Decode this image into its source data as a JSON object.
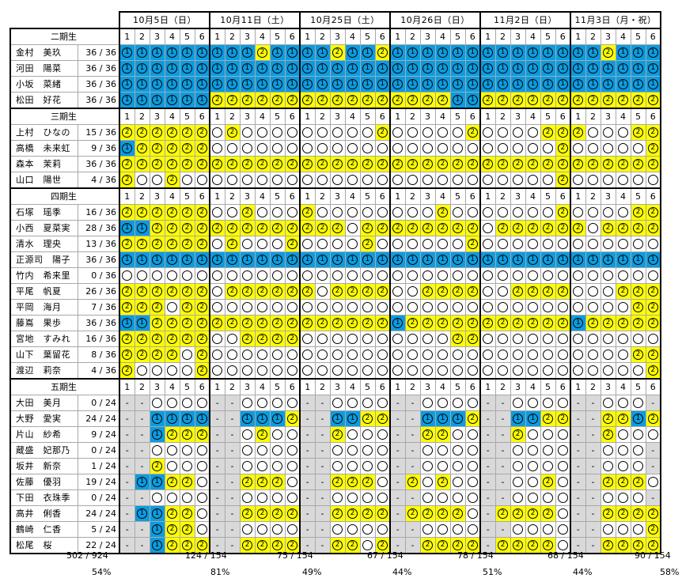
{
  "dates": [
    "10月5日（日）",
    "10月11日（土）",
    "10月25日（土）",
    "10月26日（日）",
    "11月2日（日）",
    "11月3日（月・祝）"
  ],
  "period_numbers": [
    "1",
    "2",
    "3",
    "4",
    "5",
    "6"
  ],
  "groups": [
    {
      "label": "二期生",
      "students": [
        {
          "name": "金村　美玖",
          "score": "36 / 36",
          "cells": "111111 111211 112112 111111 111111 112111"
        },
        {
          "name": "河田　陽菜",
          "score": "36 / 36",
          "cells": "111111 111111 111111 111111 111111 111111"
        },
        {
          "name": "小坂　菜緒",
          "score": "36 / 36",
          "cells": "111111 111111 111111 111111 111111 111111"
        },
        {
          "name": "松田　好花",
          "score": "36 / 36",
          "cells": "111111 222222 222222 222211 222222 222222"
        }
      ]
    },
    {
      "label": "三期生",
      "students": [
        {
          "name": "上村　ひなの",
          "score": "15 / 36",
          "cells": "222222 020000 000002 000002 000022 200022"
        },
        {
          "name": "高橋　未来虹",
          "score": "9 / 36",
          "cells": "122222 000000 000000 000000 000002 000002"
        },
        {
          "name": "森本　茉莉",
          "score": "36 / 36",
          "cells": "222222 222222 222222 222222 222222 222222"
        },
        {
          "name": "山口　陽世",
          "score": "4 / 36",
          "cells": "200200 000000 000000 000000 000002 000000"
        }
      ]
    },
    {
      "label": "四期生",
      "students": [
        {
          "name": "石塚　瑶季",
          "score": "16 / 36",
          "cells": "222222 002000 200000 000200 000002 000022"
        },
        {
          "name": "小西　夏菜実",
          "score": "28 / 36",
          "cells": "112222 222222 222022 222222 022222 202222"
        },
        {
          "name": "清水　理央",
          "score": "13 / 36",
          "cells": "222222 020002 000020 000002 000000 000000"
        },
        {
          "name": "正源司　陽子",
          "score": "36 / 36",
          "cells": "111111 111111 111111 111111 111111 111111"
        },
        {
          "name": "竹内　希来里",
          "score": "0 / 36",
          "cells": "000000 000000 000000 000000 000000 000000"
        },
        {
          "name": "平尾　帆夏",
          "score": "26 / 36",
          "cells": "222222 022222 202222 002222 002222 000222"
        },
        {
          "name": "平岡　海月",
          "score": "7 / 36",
          "cells": "222022 000000 000000 000000 000000 000022"
        },
        {
          "name": "藤嶌　果歩",
          "score": "36 / 36",
          "cells": "112222 222222 222222 122222 222222 122222"
        },
        {
          "name": "宮地　すみれ",
          "score": "16 / 36",
          "cells": "222222 002222 000000 000022 000000 000000"
        },
        {
          "name": "山下　葉留花",
          "score": "8 / 36",
          "cells": "222202 000000 000000 000000 000000 000022"
        },
        {
          "name": "渡辺　莉奈",
          "score": "4 / 36",
          "cells": "200002 000000 000000 000000 000000 000002"
        }
      ]
    },
    {
      "label": "五期生",
      "students": [
        {
          "name": "大田　美月",
          "score": "0 / 24",
          "cells": "--0000 --0000 --0000 --0000 --0000 --000-"
        },
        {
          "name": "大野　愛実",
          "score": "24 / 24",
          "cells": "--1111 --1112 --1122 --1112 --1122 --2212"
        },
        {
          "name": "片山　紗希",
          "score": "9 / 24",
          "cells": "--1222 --0200 --2000 --2200 --2000 --2000"
        },
        {
          "name": "蔵盛　妃那乃",
          "score": "0 / 24",
          "cells": "--0000 --0000 --0000 --0000 --0000 --000-"
        },
        {
          "name": "坂井　新奈",
          "score": "1 / 24",
          "cells": "--2000 --0000 --0000 --0000 --0000 --000-"
        },
        {
          "name": "佐藤　優羽",
          "score": "19 / 24",
          "cells": "-11220 --2220 --2220 -20200 --0020 --2220"
        },
        {
          "name": "下田　衣珠季",
          "score": "0 / 24",
          "cells": "--0000 --0000 --0000 --0000 --0000 --000-"
        },
        {
          "name": "高井　俐香",
          "score": "24 / 24",
          "cells": "-11220 --2222 --2222 -22220 -22220 --2222"
        },
        {
          "name": "鶴崎　仁香",
          "score": "5 / 24",
          "cells": "--1220 --0000 --0000 --0000 --0000 --0002"
        },
        {
          "name": "松尾　桜",
          "score": "22 / 24",
          "cells": "--1222 --2222 --2202 --2222 -22220 --2222"
        }
      ]
    }
  ],
  "totals": [
    {
      "count": "502 / 924",
      "pct": "54%"
    },
    {
      "count": "124 / 154",
      "pct": "81%"
    },
    {
      "count": "75 / 154",
      "pct": "49%"
    },
    {
      "count": "67 / 154",
      "pct": "44%"
    },
    {
      "count": "78 / 154",
      "pct": "51%"
    },
    {
      "count": "68 / 154",
      "pct": "44%"
    },
    {
      "count": "90 / 154",
      "pct": "58%"
    }
  ],
  "marks": {
    "first": "①",
    "second": "②",
    "none": "○",
    "na": "-"
  },
  "colors": {
    "first": "#0b9ce0",
    "second": "#ffff00",
    "na": "#d9d9d9"
  }
}
